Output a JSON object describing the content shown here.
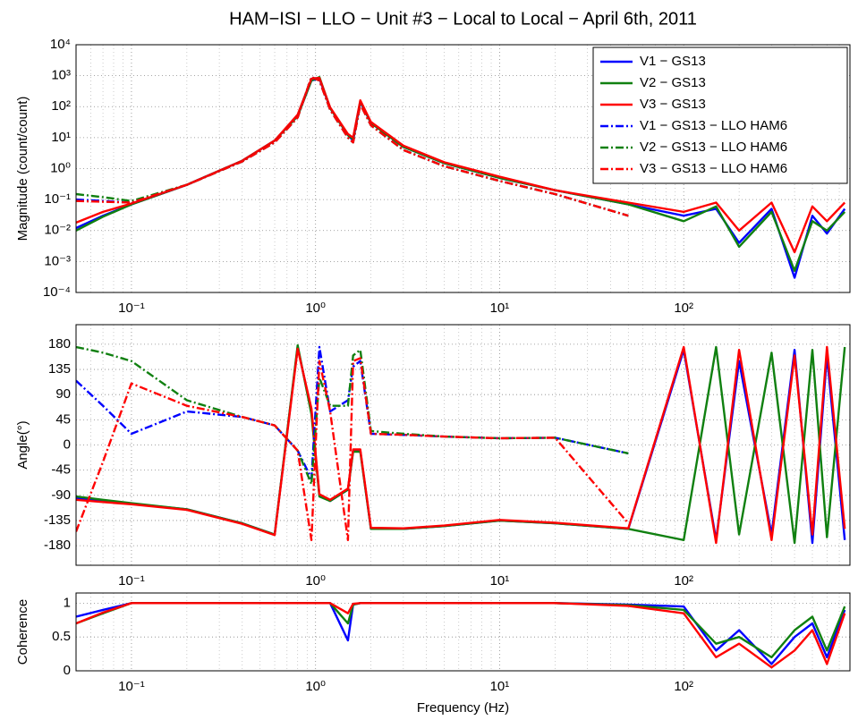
{
  "chart_data": [
    {
      "type": "line",
      "title": "HAM−ISI − LLO − Unit #3 − Local to Local − April 6th, 2011",
      "ylabel": "Magnitude (count/count)",
      "xscale": "log",
      "yscale": "log",
      "grid": true,
      "legend": "upper right",
      "xlim": [
        0.05,
        800
      ],
      "ylim": [
        0.0001,
        10000
      ],
      "xticks": [
        {
          "value": 0.1,
          "label": "10⁻¹"
        },
        {
          "value": 1,
          "label": "10⁰"
        },
        {
          "value": 10,
          "label": "10¹"
        },
        {
          "value": 100,
          "label": "10²"
        }
      ],
      "xminorticks": [
        0.06,
        0.07,
        0.08,
        0.09,
        0.2,
        0.3,
        0.4,
        0.5,
        0.6,
        0.7,
        0.8,
        0.9,
        2,
        3,
        4,
        5,
        6,
        7,
        8,
        9,
        20,
        30,
        40,
        50,
        60,
        70,
        80,
        90,
        200,
        300,
        400,
        500,
        600,
        700
      ],
      "yticks": [
        {
          "value": 0.0001,
          "label": "10⁻⁴"
        },
        {
          "value": 0.001,
          "label": "10⁻³"
        },
        {
          "value": 0.01,
          "label": "10⁻²"
        },
        {
          "value": 0.1,
          "label": "10⁻¹"
        },
        {
          "value": 1,
          "label": "10⁰"
        },
        {
          "value": 10,
          "label": "10¹"
        },
        {
          "value": 100,
          "label": "10²"
        },
        {
          "value": 1000,
          "label": "10³"
        },
        {
          "value": 10000,
          "label": "10⁴"
        }
      ],
      "x": [
        0.05,
        0.07,
        0.1,
        0.2,
        0.4,
        0.6,
        0.8,
        0.95,
        1.05,
        1.2,
        1.5,
        1.6,
        1.75,
        2,
        3,
        5,
        10,
        20,
        50,
        100,
        150,
        200,
        300,
        400,
        500,
        600,
        750
      ],
      "series": [
        {
          "name": "V1 − GS13",
          "color": "#0000ff",
          "dash": "solid",
          "values": [
            0.012,
            0.03,
            0.07,
            0.3,
            1.8,
            8,
            50,
            700,
            800,
            90,
            12,
            8,
            140,
            30,
            5,
            1.5,
            0.5,
            0.2,
            0.07,
            0.03,
            0.05,
            0.004,
            0.05,
            0.0003,
            0.03,
            0.008,
            0.05
          ]
        },
        {
          "name": "V2 − GS13",
          "color": "#108010",
          "dash": "solid",
          "values": [
            0.01,
            0.028,
            0.07,
            0.3,
            1.8,
            8,
            50,
            700,
            900,
            90,
            12,
            9,
            150,
            30,
            5,
            1.5,
            0.5,
            0.2,
            0.07,
            0.02,
            0.06,
            0.003,
            0.04,
            0.0005,
            0.02,
            0.01,
            0.04
          ]
        },
        {
          "name": "V3 − GS13",
          "color": "#ff0000",
          "dash": "solid",
          "values": [
            0.018,
            0.04,
            0.075,
            0.3,
            1.8,
            8,
            55,
            800,
            850,
            95,
            13,
            10,
            160,
            32,
            5.5,
            1.6,
            0.55,
            0.2,
            0.08,
            0.04,
            0.08,
            0.01,
            0.08,
            0.002,
            0.06,
            0.02,
            0.08
          ]
        },
        {
          "name": "V1 − GS13 − LLO HAM6",
          "color": "#0000ff",
          "dash": "dashdot",
          "values": [
            0.1,
            0.09,
            0.08,
            0.3,
            1.7,
            7,
            45,
            900,
            700,
            80,
            10,
            7,
            120,
            25,
            4,
            1.2,
            0.4,
            0.15,
            0.03,
            null,
            null,
            null,
            null,
            null,
            null,
            null,
            null
          ]
        },
        {
          "name": "V2 − GS13 − LLO HAM6",
          "color": "#108010",
          "dash": "dashdot",
          "values": [
            0.15,
            0.12,
            0.09,
            0.3,
            1.7,
            7,
            45,
            900,
            700,
            80,
            10,
            7,
            120,
            25,
            4,
            1.2,
            0.4,
            0.15,
            0.03,
            null,
            null,
            null,
            null,
            null,
            null,
            null,
            null
          ]
        },
        {
          "name": "V3 − GS13 − LLO HAM6",
          "color": "#ff0000",
          "dash": "dashdot",
          "values": [
            0.09,
            0.085,
            0.08,
            0.3,
            1.7,
            7,
            45,
            900,
            700,
            80,
            10,
            7,
            120,
            25,
            4,
            1.2,
            0.4,
            0.15,
            0.03,
            null,
            null,
            null,
            null,
            null,
            null,
            null,
            null
          ]
        }
      ]
    },
    {
      "type": "line",
      "ylabel": "Angle(°)",
      "xscale": "log",
      "grid": true,
      "xlim": [
        0.05,
        800
      ],
      "ylim": [
        -215,
        215
      ],
      "xticks": [
        {
          "value": 0.1,
          "label": "10⁻¹"
        },
        {
          "value": 1,
          "label": "10⁰"
        },
        {
          "value": 10,
          "label": "10¹"
        },
        {
          "value": 100,
          "label": "10²"
        }
      ],
      "xminorticks": [
        0.06,
        0.07,
        0.08,
        0.09,
        0.2,
        0.3,
        0.4,
        0.5,
        0.6,
        0.7,
        0.8,
        0.9,
        2,
        3,
        4,
        5,
        6,
        7,
        8,
        9,
        20,
        30,
        40,
        50,
        60,
        70,
        80,
        90,
        200,
        300,
        400,
        500,
        600,
        700
      ],
      "yticks": [
        -180,
        -135,
        -90,
        -45,
        0,
        45,
        90,
        135,
        180
      ],
      "x": [
        0.05,
        0.07,
        0.1,
        0.2,
        0.4,
        0.6,
        0.8,
        0.95,
        1.05,
        1.2,
        1.5,
        1.6,
        1.75,
        2,
        3,
        5,
        10,
        20,
        50,
        100,
        150,
        200,
        300,
        400,
        500,
        600,
        750
      ],
      "series": [
        {
          "color": "#0000ff",
          "dash": "solid",
          "values": [
            -95,
            -100,
            -105,
            -115,
            -140,
            -160,
            175,
            60,
            -90,
            -100,
            -80,
            -10,
            -10,
            -150,
            -150,
            -145,
            -135,
            -140,
            -150,
            170,
            -170,
            150,
            -160,
            170,
            -175,
            160,
            -170
          ]
        },
        {
          "color": "#108010",
          "dash": "solid",
          "values": [
            -92,
            -98,
            -104,
            -115,
            -140,
            -160,
            178,
            55,
            -92,
            -100,
            -80,
            -12,
            -12,
            -150,
            -150,
            -145,
            -135,
            -140,
            -150,
            -170,
            175,
            -160,
            165,
            -175,
            170,
            -165,
            175
          ]
        },
        {
          "color": "#ff0000",
          "dash": "solid",
          "values": [
            -98,
            -102,
            -106,
            -116,
            -141,
            -161,
            172,
            65,
            -88,
            -98,
            -78,
            -8,
            -8,
            -148,
            -149,
            -144,
            -134,
            -139,
            -149,
            175,
            -175,
            170,
            -170,
            160,
            -160,
            175,
            -150
          ]
        },
        {
          "color": "#0000ff",
          "dash": "dashdot",
          "values": [
            115,
            70,
            20,
            60,
            50,
            35,
            -10,
            -60,
            175,
            60,
            80,
            140,
            150,
            20,
            18,
            15,
            12,
            13,
            -15,
            null,
            null,
            null,
            null,
            null,
            null,
            null,
            null
          ]
        },
        {
          "color": "#108010",
          "dash": "dashdot",
          "values": [
            175,
            165,
            150,
            80,
            50,
            35,
            -10,
            -70,
            120,
            70,
            70,
            160,
            170,
            25,
            20,
            15,
            12,
            13,
            -15,
            null,
            null,
            null,
            null,
            null,
            null,
            null,
            null
          ]
        },
        {
          "color": "#ff0000",
          "dash": "dashdot",
          "values": [
            -155,
            -30,
            110,
            70,
            50,
            35,
            -10,
            -170,
            150,
            60,
            -170,
            150,
            155,
            20,
            18,
            15,
            12,
            13,
            -140,
            null,
            null,
            null,
            null,
            null,
            null,
            null,
            null
          ]
        }
      ]
    },
    {
      "type": "line",
      "ylabel": "Coherence",
      "xlabel": "Frequency (Hz)",
      "xscale": "log",
      "grid": true,
      "xlim": [
        0.05,
        800
      ],
      "ylim": [
        0,
        1.15
      ],
      "xticks": [
        {
          "value": 0.1,
          "label": "10⁻¹"
        },
        {
          "value": 1,
          "label": "10⁰"
        },
        {
          "value": 10,
          "label": "10¹"
        },
        {
          "value": 100,
          "label": "10²"
        }
      ],
      "xminorticks": [
        0.06,
        0.07,
        0.08,
        0.09,
        0.2,
        0.3,
        0.4,
        0.5,
        0.6,
        0.7,
        0.8,
        0.9,
        2,
        3,
        4,
        5,
        6,
        7,
        8,
        9,
        20,
        30,
        40,
        50,
        60,
        70,
        80,
        90,
        200,
        300,
        400,
        500,
        600,
        700
      ],
      "yticks": [
        0,
        0.5,
        1
      ],
      "x": [
        0.05,
        0.07,
        0.1,
        0.2,
        0.4,
        0.6,
        0.8,
        0.95,
        1.05,
        1.2,
        1.5,
        1.6,
        1.75,
        2,
        3,
        5,
        10,
        20,
        50,
        100,
        150,
        200,
        300,
        400,
        500,
        600,
        750
      ],
      "series": [
        {
          "color": "#0000ff",
          "dash": "solid",
          "values": [
            0.8,
            0.9,
            1,
            1,
            1,
            1,
            1,
            1,
            1,
            1,
            0.45,
            0.98,
            1,
            1,
            1,
            1,
            1,
            1,
            0.98,
            0.95,
            0.3,
            0.6,
            0.1,
            0.5,
            0.7,
            0.2,
            0.9
          ]
        },
        {
          "color": "#108010",
          "dash": "solid",
          "values": [
            0.7,
            0.85,
            1,
            1,
            1,
            1,
            1,
            1,
            1,
            1,
            0.7,
            0.98,
            1,
            1,
            1,
            1,
            1,
            1,
            0.97,
            0.9,
            0.4,
            0.5,
            0.2,
            0.6,
            0.8,
            0.3,
            0.95
          ]
        },
        {
          "color": "#ff0000",
          "dash": "solid",
          "values": [
            0.7,
            0.86,
            1,
            1,
            1,
            1,
            1,
            1,
            1,
            1,
            0.85,
            0.99,
            1,
            1,
            1,
            1,
            1,
            1,
            0.96,
            0.85,
            0.2,
            0.4,
            0.05,
            0.3,
            0.6,
            0.1,
            0.85
          ]
        }
      ]
    }
  ]
}
